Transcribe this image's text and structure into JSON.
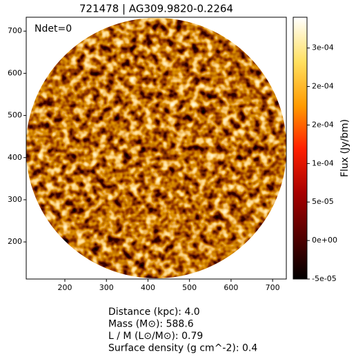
{
  "chart_data": {
    "type": "image",
    "title": "721478 | AG309.9820-0.2264",
    "annotation": "Ndet=0",
    "xlim": [
      107,
      733
    ],
    "xticks": [
      200,
      300,
      400,
      500,
      600,
      700
    ],
    "ylim": [
      112,
      733
    ],
    "yticks": [
      200,
      300,
      400,
      500,
      600,
      700
    ],
    "colormap": "afmhot",
    "colorbar": {
      "label": "Flux (Jy/bm)",
      "lim": [
        -5e-05,
        0.00029
      ],
      "ticks": [
        {
          "value": -5e-05,
          "label": "-5e-05"
        },
        {
          "value": 0,
          "label": "0e+00"
        },
        {
          "value": 5e-05,
          "label": "5e-05"
        },
        {
          "value": 0.0001,
          "label": "1e-04"
        },
        {
          "value": 0.00015,
          "label": "2e-04"
        },
        {
          "value": 0.0002,
          "label": "2e-04"
        },
        {
          "value": 0.00025,
          "label": "3e-04"
        }
      ]
    },
    "info": [
      "Distance (kpc): 4.0",
      "Mass (M⊙): 588.6",
      "L / M (L⊙/M⊙): 0.79",
      "Surface density (g cm^-2): 0.4"
    ]
  }
}
